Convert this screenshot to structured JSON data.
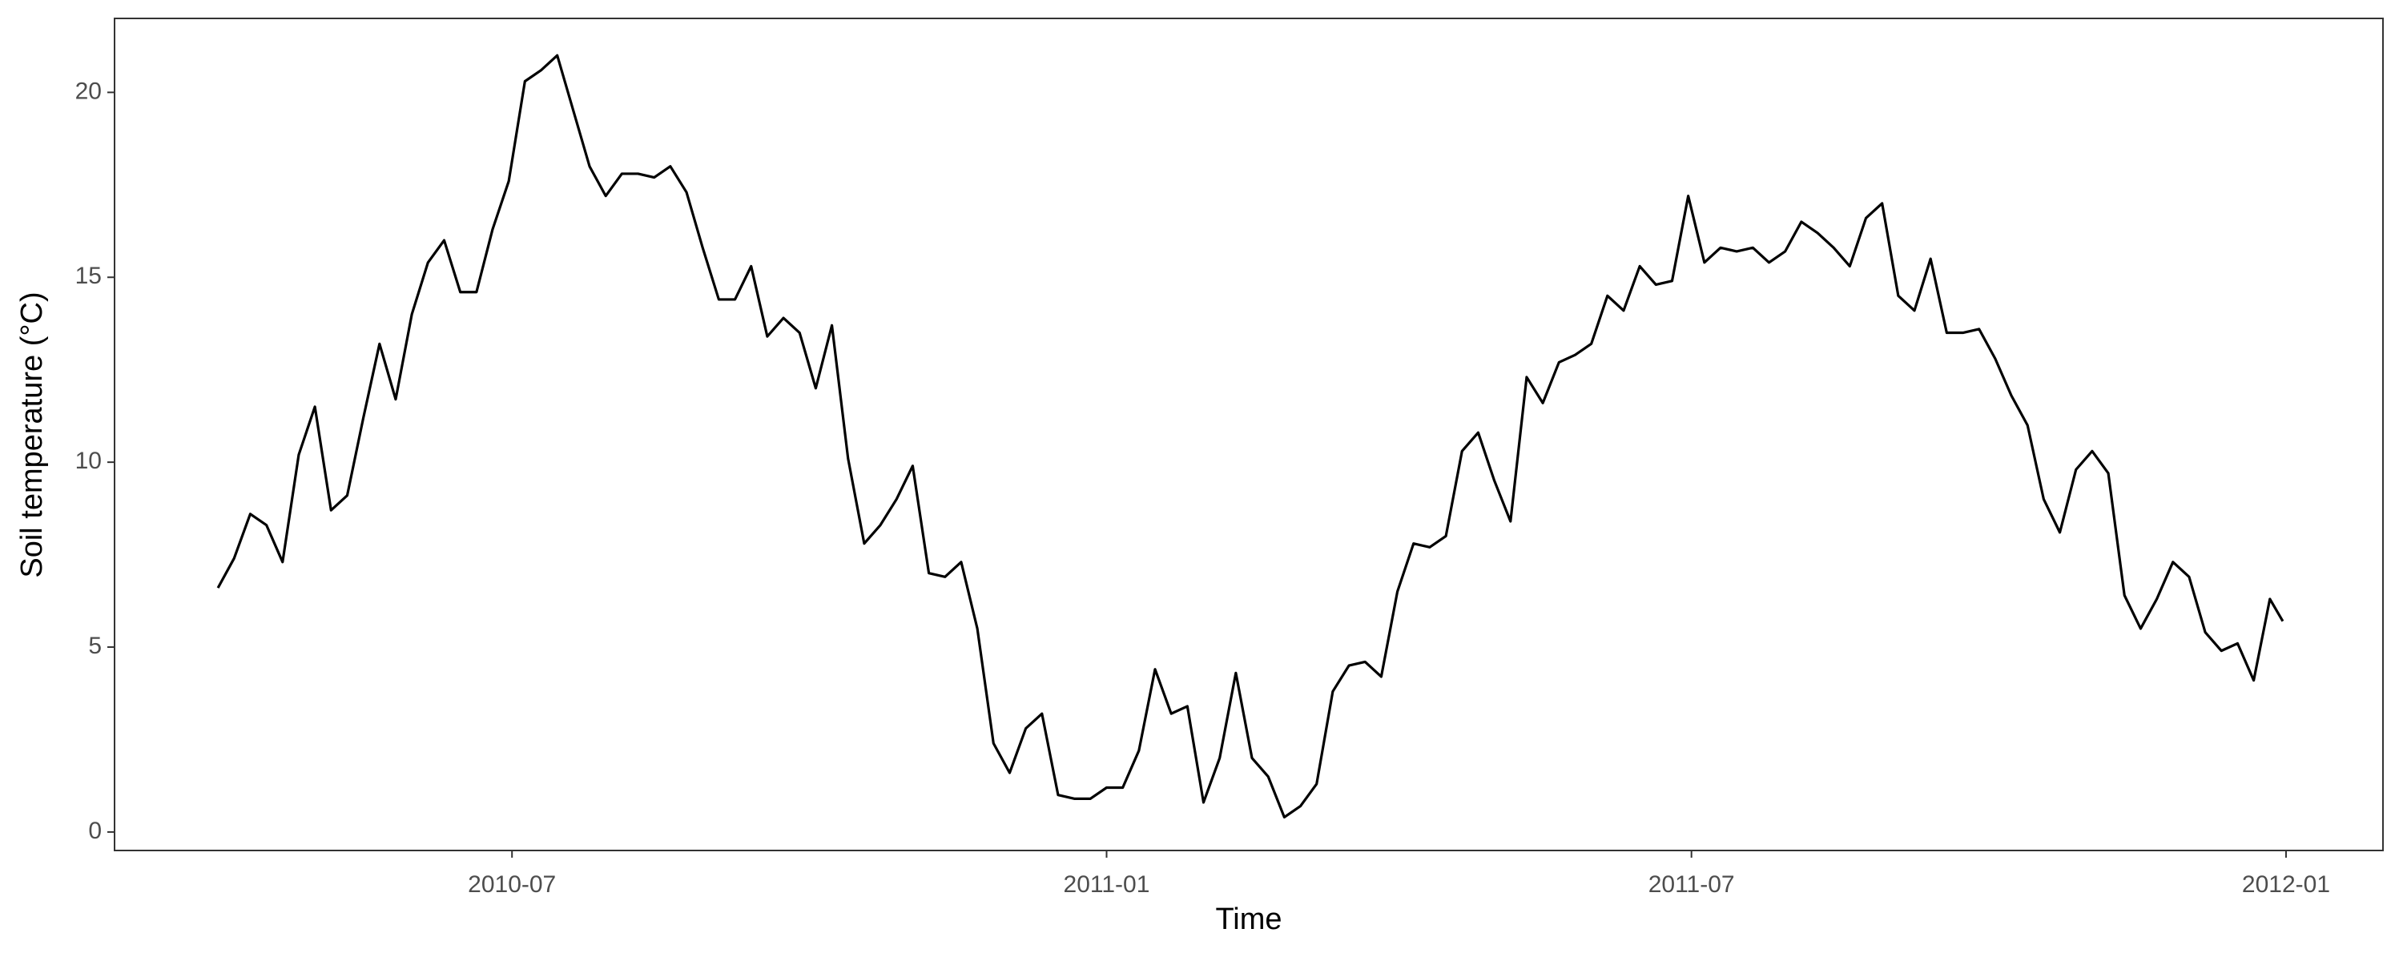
{
  "chart_data": {
    "type": "line",
    "xlabel": "Time",
    "ylabel": "Soil temperature (°C)",
    "x": [
      "2010-04-01",
      "2010-04-06",
      "2010-04-11",
      "2010-04-16",
      "2010-04-21",
      "2010-04-26",
      "2010-05-01",
      "2010-05-06",
      "2010-05-11",
      "2010-05-16",
      "2010-05-21",
      "2010-05-26",
      "2010-05-31",
      "2010-06-05",
      "2010-06-10",
      "2010-06-15",
      "2010-06-20",
      "2010-06-25",
      "2010-06-30",
      "2010-07-05",
      "2010-07-10",
      "2010-07-15",
      "2010-07-20",
      "2010-07-25",
      "2010-07-30",
      "2010-08-04",
      "2010-08-09",
      "2010-08-14",
      "2010-08-19",
      "2010-08-24",
      "2010-08-29",
      "2010-09-03",
      "2010-09-08",
      "2010-09-13",
      "2010-09-18",
      "2010-09-23",
      "2010-09-28",
      "2010-10-03",
      "2010-10-08",
      "2010-10-13",
      "2010-10-18",
      "2010-10-23",
      "2010-10-28",
      "2010-11-02",
      "2010-11-07",
      "2010-11-12",
      "2010-11-17",
      "2010-11-22",
      "2010-11-27",
      "2010-12-02",
      "2010-12-07",
      "2010-12-12",
      "2010-12-17",
      "2010-12-22",
      "2010-12-27",
      "2011-01-01",
      "2011-01-06",
      "2011-01-11",
      "2011-01-16",
      "2011-01-21",
      "2011-01-26",
      "2011-01-31",
      "2011-02-05",
      "2011-02-10",
      "2011-02-15",
      "2011-02-20",
      "2011-02-25",
      "2011-03-02",
      "2011-03-07",
      "2011-03-12",
      "2011-03-17",
      "2011-03-22",
      "2011-03-27",
      "2011-04-01",
      "2011-04-06",
      "2011-04-11",
      "2011-04-16",
      "2011-04-21",
      "2011-04-26",
      "2011-05-01",
      "2011-05-06",
      "2011-05-11",
      "2011-05-16",
      "2011-05-21",
      "2011-05-26",
      "2011-05-31",
      "2011-06-05",
      "2011-06-10",
      "2011-06-15",
      "2011-06-20",
      "2011-06-25",
      "2011-06-30",
      "2011-07-05",
      "2011-07-10",
      "2011-07-15",
      "2011-07-20",
      "2011-07-25",
      "2011-07-30",
      "2011-08-04",
      "2011-08-09",
      "2011-08-14",
      "2011-08-19",
      "2011-08-24",
      "2011-08-29",
      "2011-09-03",
      "2011-09-08",
      "2011-09-13",
      "2011-09-18",
      "2011-09-23",
      "2011-09-28",
      "2011-10-03",
      "2011-10-08",
      "2011-10-13",
      "2011-10-18",
      "2011-10-23",
      "2011-10-28",
      "2011-11-02",
      "2011-11-07",
      "2011-11-12",
      "2011-11-17",
      "2011-11-22",
      "2011-11-27",
      "2011-12-02",
      "2011-12-07",
      "2011-12-12",
      "2011-12-17",
      "2011-12-22",
      "2011-12-27",
      "2011-12-31"
    ],
    "values": [
      6.6,
      7.4,
      8.6,
      8.3,
      7.3,
      10.2,
      11.5,
      8.7,
      9.1,
      11.2,
      13.2,
      11.7,
      14.0,
      15.4,
      16.0,
      14.6,
      14.6,
      16.3,
      17.6,
      20.3,
      20.6,
      21.0,
      19.5,
      18.0,
      17.2,
      17.8,
      17.8,
      17.7,
      18.0,
      17.3,
      15.8,
      14.4,
      14.4,
      15.3,
      13.4,
      13.9,
      13.5,
      12.0,
      13.7,
      10.1,
      7.8,
      8.3,
      9.0,
      9.9,
      7.0,
      6.9,
      7.3,
      5.5,
      2.4,
      1.6,
      2.8,
      3.2,
      1.0,
      0.9,
      0.9,
      1.2,
      1.2,
      2.2,
      4.4,
      3.2,
      3.4,
      0.8,
      2.0,
      4.3,
      2.0,
      1.5,
      0.4,
      0.7,
      1.3,
      3.8,
      4.5,
      4.6,
      4.2,
      6.5,
      7.8,
      7.7,
      8.0,
      10.3,
      10.8,
      9.5,
      8.4,
      12.3,
      11.6,
      12.7,
      12.9,
      13.2,
      14.5,
      14.1,
      15.3,
      14.8,
      14.9,
      17.2,
      15.4,
      15.8,
      15.7,
      15.8,
      15.4,
      15.7,
      16.5,
      16.2,
      15.8,
      15.3,
      16.6,
      17.0,
      14.5,
      14.1,
      15.5,
      13.5,
      13.5,
      13.6,
      12.8,
      11.8,
      11.0,
      9.0,
      8.1,
      9.8,
      10.3,
      9.7,
      6.4,
      5.5,
      6.3,
      7.3,
      6.9,
      5.4,
      4.9,
      5.1,
      4.1,
      6.3,
      5.7
    ],
    "color": "#000000",
    "xlim": [
      "2010-02-28",
      "2012-01-31"
    ],
    "xticks": [
      {
        "value": "2010-07-01",
        "label": "2010-07"
      },
      {
        "value": "2011-01-01",
        "label": "2011-01"
      },
      {
        "value": "2011-07-01",
        "label": "2011-07"
      },
      {
        "value": "2012-01-01",
        "label": "2012-01"
      }
    ],
    "ylim": [
      -0.5,
      22
    ],
    "yticks": [
      0,
      5,
      10,
      15,
      20
    ],
    "grid": false
  }
}
